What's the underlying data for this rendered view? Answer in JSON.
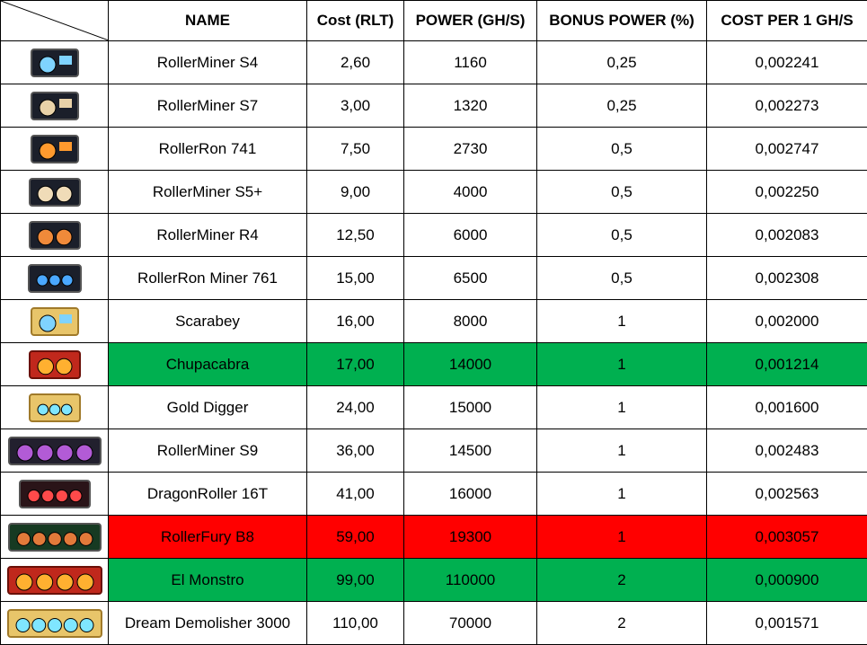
{
  "table": {
    "header": [
      "NAME",
      "Cost (RLT)",
      "POWER (GH/S)",
      "BONUS POWER (%)",
      "COST PER 1 GH/S"
    ],
    "rows": [
      {
        "cells": [
          "RollerMiner S4",
          "2,60",
          "1160",
          "0,25",
          "0,002241"
        ]
      },
      {
        "cells": [
          "RollerMiner S7",
          "3,00",
          "1320",
          "0,25",
          "0,002273"
        ]
      },
      {
        "cells": [
          "RollerRon 741",
          "7,50",
          "2730",
          "0,5",
          "0,002747"
        ]
      },
      {
        "cells": [
          "RollerMiner S5+",
          "9,00",
          "4000",
          "0,5",
          "0,002250"
        ]
      },
      {
        "cells": [
          "RollerMiner R4",
          "12,50",
          "6000",
          "0,5",
          "0,002083"
        ]
      },
      {
        "cells": [
          "RollerRon Miner 761",
          "15,00",
          "6500",
          "0,5",
          "0,002308"
        ]
      },
      {
        "cells": [
          "Scarabey",
          "16,00",
          "8000",
          "1",
          "0,002000"
        ]
      },
      {
        "cells": [
          "Chupacabra",
          "17,00",
          "14000",
          "1",
          "0,001214"
        ],
        "fill": "#00b050"
      },
      {
        "cells": [
          "Gold Digger",
          "24,00",
          "15000",
          "1",
          "0,001600"
        ]
      },
      {
        "cells": [
          "RollerMiner S9",
          "36,00",
          "14500",
          "1",
          "0,002483"
        ]
      },
      {
        "cells": [
          "DragonRoller 16T",
          "41,00",
          "16000",
          "1",
          "0,002563"
        ]
      },
      {
        "cells": [
          "RollerFury B8",
          "59,00",
          "19300",
          "1",
          "0,003057"
        ],
        "fill": "#ff0000"
      },
      {
        "cells": [
          "El Monstro",
          "99,00",
          "110000",
          "2",
          "0,000900"
        ],
        "fill": "#00b050"
      },
      {
        "cells": [
          "Dream Demolisher 3000",
          "110,00",
          "70000",
          "2",
          "0,001571"
        ]
      }
    ]
  }
}
